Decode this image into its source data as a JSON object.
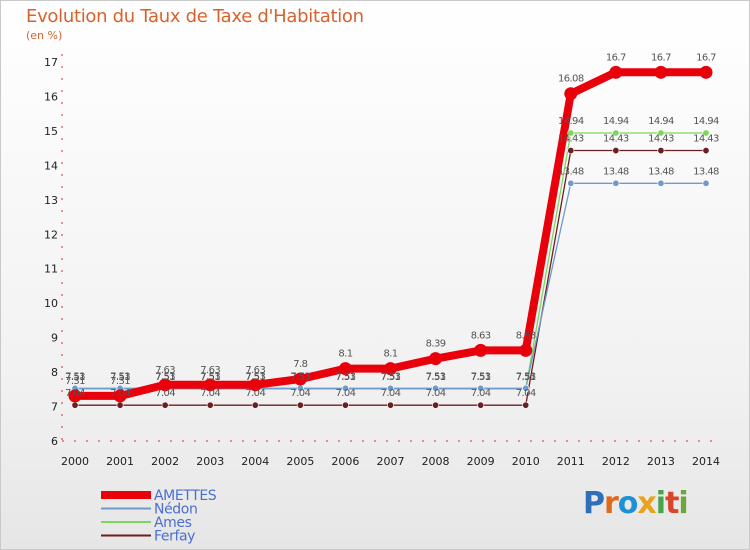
{
  "title": "Evolution du Taux de Taxe d'Habitation",
  "unit_label": "(en %)",
  "logo": {
    "text": "Proxiti",
    "colors": [
      "#2f6fb7",
      "#e06a1b",
      "#1e90d6",
      "#e8a21b",
      "#47a447",
      "#d9442a",
      "#6aa839"
    ]
  },
  "chart_data": {
    "type": "line",
    "title": "Evolution du Taux de Taxe d'Habitation",
    "ylabel": "(en %)",
    "xlabel": "",
    "ylim": [
      6,
      17
    ],
    "yticks": [
      "6",
      "7",
      "8",
      "9",
      "10",
      "11",
      "12",
      "13",
      "14",
      "15",
      "16",
      "17"
    ],
    "x": [
      "2000",
      "2001",
      "2002",
      "2003",
      "2004",
      "2005",
      "2006",
      "2007",
      "2008",
      "2009",
      "2010",
      "2011",
      "2012",
      "2013",
      "2014"
    ],
    "grid": false,
    "legend": "bottom-left",
    "series": [
      {
        "name": "AMETTES",
        "color": "#e8000b",
        "values": [
          7.31,
          7.31,
          7.63,
          7.63,
          7.63,
          7.8,
          8.1,
          8.1,
          8.39,
          8.63,
          8.63,
          16.08,
          16.7,
          16.7,
          16.7
        ],
        "labels": [
          "7.31",
          "7.31",
          "7.63",
          "7.63",
          "7.63",
          "7.8",
          "8.1",
          "8.1",
          "8.39",
          "8.63",
          "8.63",
          "16.08",
          "16.7",
          "16.7",
          "16.7"
        ]
      },
      {
        "name": "Nédon",
        "color": "#6f9ac9",
        "values": [
          7.53,
          7.53,
          7.53,
          7.53,
          7.53,
          7.53,
          7.53,
          7.53,
          7.53,
          7.53,
          7.53,
          13.48,
          13.48,
          13.48,
          13.48
        ],
        "labels": [
          "7.53",
          "7.53",
          "7.53",
          "7.53",
          "7.53",
          "7.53",
          "7.53",
          "7.53",
          "7.53",
          "7.53",
          "7.53",
          "13.48",
          "13.48",
          "13.48",
          "13.48"
        ]
      },
      {
        "name": "Ames",
        "color": "#7fd65c",
        "values": [
          7.51,
          7.51,
          7.51,
          7.51,
          7.51,
          7.51,
          7.51,
          7.51,
          7.51,
          7.51,
          7.51,
          14.94,
          14.94,
          14.94,
          14.94
        ],
        "labels": [
          "7.51",
          "7.51",
          "7.51",
          "7.51",
          "7.51",
          "7.51",
          "7.51",
          "7.51",
          "7.51",
          "7.51",
          "7.51",
          "14.94",
          "14.94",
          "14.94",
          "14.94"
        ]
      },
      {
        "name": "Ferfay",
        "color": "#6b1f22",
        "values": [
          7.04,
          7.04,
          7.04,
          7.04,
          7.04,
          7.04,
          7.04,
          7.04,
          7.04,
          7.04,
          7.04,
          14.43,
          14.43,
          14.43,
          14.43
        ],
        "labels": [
          "7.04",
          "7.04",
          "7.04",
          "7.04",
          "7.04",
          "7.04",
          "7.04",
          "7.04",
          "7.04",
          "7.04",
          "7.04",
          "14.43",
          "14.43",
          "14.43",
          "14.43"
        ]
      }
    ]
  }
}
